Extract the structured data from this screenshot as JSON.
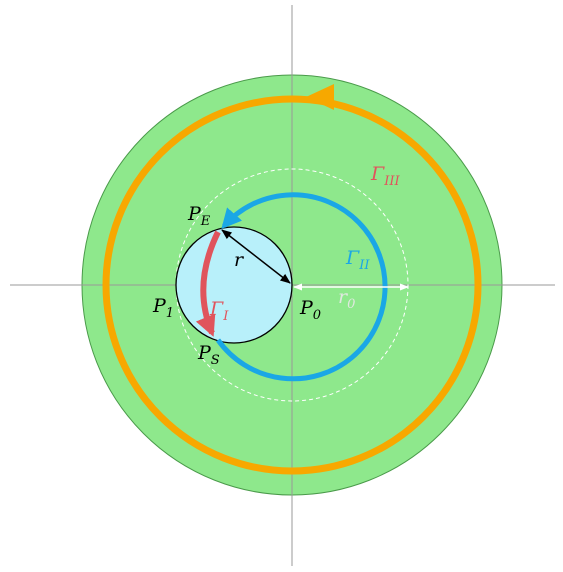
{
  "labels": {
    "p_e": {
      "main": "P",
      "sub": "E"
    },
    "r": {
      "main": "r"
    },
    "p_1": {
      "main": "P",
      "sub": "1"
    },
    "gamma_1": {
      "main": "Γ",
      "sub": "I"
    },
    "p_s": {
      "main": "P",
      "sub": "S"
    },
    "p_0": {
      "main": "P",
      "sub": "0"
    },
    "r_0": {
      "main": "r",
      "sub": "0"
    },
    "gamma_2": {
      "main": "Γ",
      "sub": "II"
    },
    "gamma_3": {
      "main": "Γ",
      "sub": "III"
    }
  }
}
